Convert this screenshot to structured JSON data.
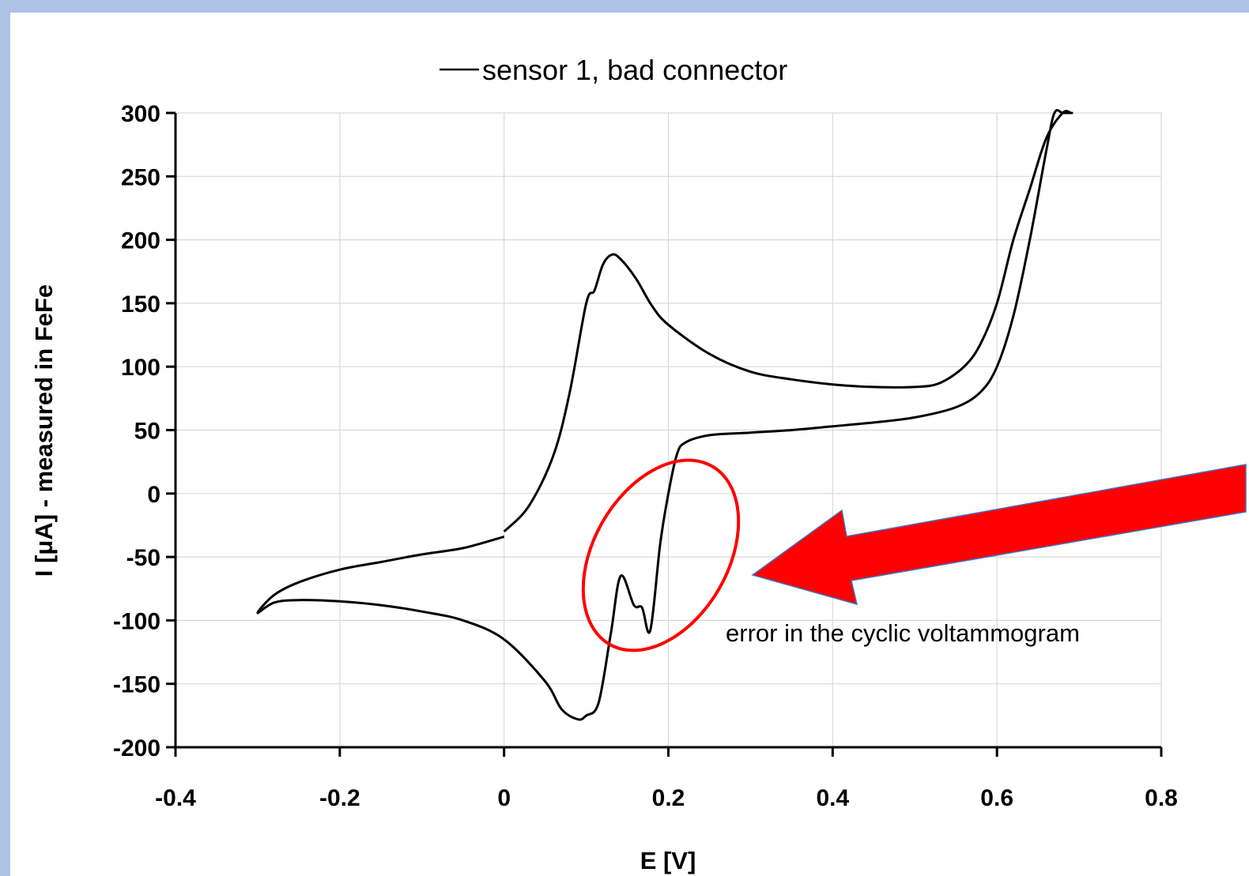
{
  "chart_data": {
    "type": "line",
    "legend": {
      "position": "top",
      "entries": [
        "sensor 1, bad connector"
      ]
    },
    "xlabel": "E [V]",
    "ylabel": "I [μA] - measured in FeFe",
    "xlim": [
      -0.4,
      0.8
    ],
    "ylim": [
      -200,
      300
    ],
    "xticks": [
      "-0.4",
      "-0.2",
      "0",
      "0.2",
      "0.4",
      "0.6",
      "0.8"
    ],
    "yticks": [
      "300",
      "250",
      "200",
      "150",
      "100",
      "50",
      "0",
      "-50",
      "-100",
      "-150",
      "-200"
    ],
    "grid": true,
    "series": [
      {
        "name": "sensor 1, bad connector",
        "color": "#000000",
        "x": [
          0.0,
          0.03,
          0.06,
          0.08,
          0.1,
          0.11,
          0.12,
          0.13,
          0.14,
          0.16,
          0.18,
          0.2,
          0.25,
          0.3,
          0.35,
          0.4,
          0.45,
          0.5,
          0.53,
          0.56,
          0.58,
          0.6,
          0.62,
          0.64,
          0.66,
          0.68,
          0.69,
          0.69,
          0.68,
          0.67,
          0.66,
          0.64,
          0.62,
          0.6,
          0.58,
          0.55,
          0.5,
          0.45,
          0.4,
          0.35,
          0.3,
          0.25,
          0.22,
          0.21,
          0.2,
          0.19,
          0.178,
          0.168,
          0.158,
          0.142,
          0.13,
          0.115,
          0.1,
          0.09,
          0.07,
          0.05,
          0.0,
          -0.05,
          -0.1,
          -0.15,
          -0.2,
          -0.25,
          -0.28,
          -0.3,
          -0.28,
          -0.25,
          -0.2,
          -0.15,
          -0.1,
          -0.05,
          0.0
        ],
        "y": [
          -30,
          -10,
          30,
          80,
          150,
          160,
          180,
          188,
          186,
          170,
          148,
          133,
          110,
          96,
          90,
          86,
          84,
          84,
          87,
          100,
          118,
          150,
          200,
          240,
          280,
          300,
          300,
          300,
          300,
          300,
          270,
          200,
          140,
          100,
          80,
          68,
          60,
          56,
          53,
          50,
          48,
          46,
          40,
          30,
          0,
          -40,
          -108,
          -90,
          -88,
          -65,
          -110,
          -165,
          -175,
          -178,
          -170,
          -148,
          -115,
          -100,
          -93,
          -88,
          -85,
          -84,
          -86,
          -94,
          -80,
          -70,
          -60,
          -54,
          -48,
          -43,
          -34
        ]
      }
    ],
    "annotations": [
      {
        "text": "error in the cyclic voltammogram",
        "highlight_color": "#ff0000"
      }
    ]
  }
}
